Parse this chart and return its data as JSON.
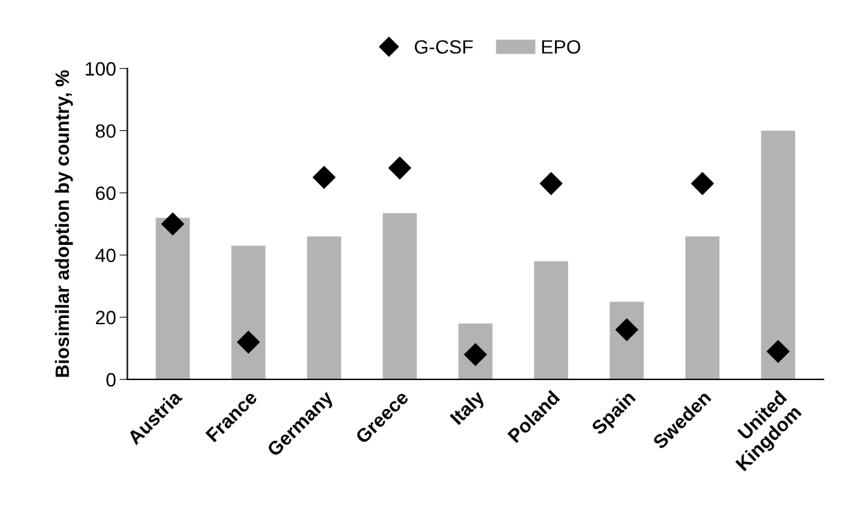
{
  "chart_data": {
    "type": "bar",
    "ylabel": "Biosimilar adoption by country, %",
    "categories": [
      "Austria",
      "France",
      "Germany",
      "Greece",
      "Italy",
      "Poland",
      "Spain",
      "Sweden",
      "United\nKingdom"
    ],
    "series": [
      {
        "name": "G-CSF",
        "type": "scatter",
        "color": "#000000",
        "marker": "diamond",
        "values": [
          50,
          12,
          65,
          68,
          8,
          63,
          16,
          63,
          9
        ]
      },
      {
        "name": "EPO",
        "color": "#b3b3b3",
        "values": [
          52,
          43,
          46,
          53.5,
          18,
          38,
          25,
          46,
          80
        ]
      }
    ],
    "ylim": [
      0,
      100
    ],
    "yticks": [
      0,
      20,
      40,
      60,
      80,
      100
    ],
    "grid": false,
    "legend": "top"
  }
}
